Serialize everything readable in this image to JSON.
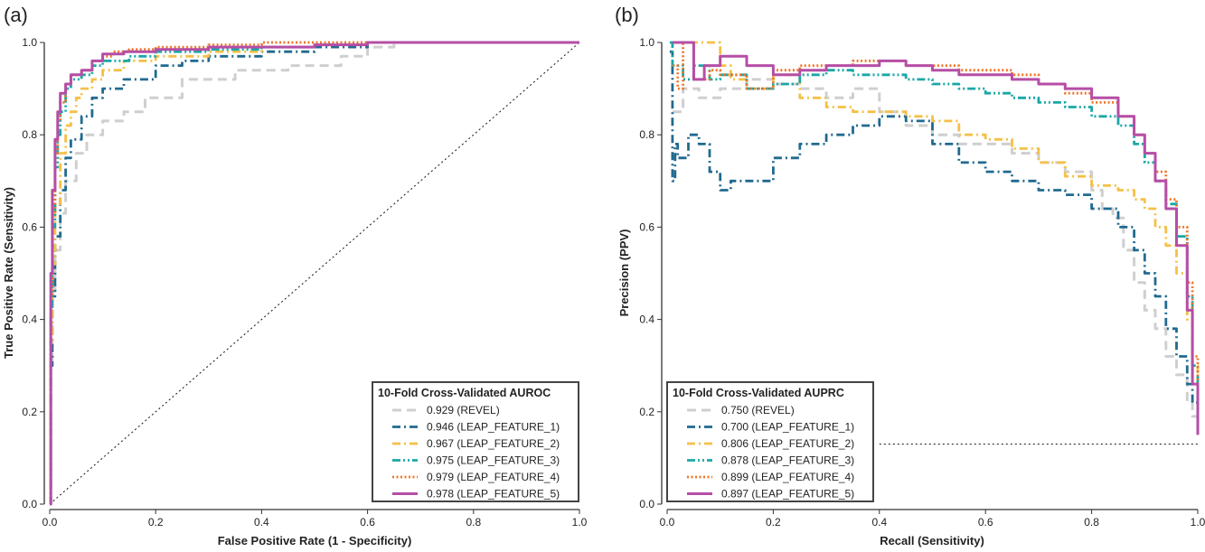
{
  "colors": {
    "REVEL": "#cfcfcf",
    "LEAP_FEATURE_1": "#216a8f",
    "LEAP_FEATURE_2": "#f5c048",
    "LEAP_FEATURE_3": "#1aa7a7",
    "LEAP_FEATURE_4": "#ee7628",
    "LEAP_FEATURE_5": "#b54ea6"
  },
  "chart_data": [
    {
      "type": "line",
      "panel_label": "(a)",
      "xlabel": "False Positive Rate (1 - Specificity)",
      "ylabel": "True Positive Rate (Sensitivity)",
      "xlim": [
        0,
        1
      ],
      "ylim": [
        0,
        1
      ],
      "xticks": [
        "0.0",
        "0.2",
        "0.4",
        "0.6",
        "0.8",
        "1.0"
      ],
      "yticks": [
        "0.0",
        "0.2",
        "0.4",
        "0.6",
        "0.8",
        "1.0"
      ],
      "grid": false,
      "legend_position": "bottom-right",
      "legend_title": "10-Fold Cross-Validated AUROC",
      "reference_line": {
        "style": "dotted",
        "x": [
          0,
          1
        ],
        "y": [
          0,
          1
        ]
      },
      "series": [
        {
          "name": "REVEL",
          "legend": "0.929 (REVEL)",
          "style": "dashed",
          "x": [
            0,
            0.002,
            0.005,
            0.01,
            0.02,
            0.03,
            0.05,
            0.07,
            0.1,
            0.14,
            0.18,
            0.25,
            0.35,
            0.45,
            0.55,
            0.6,
            0.65,
            1.0
          ],
          "y": [
            0,
            0.3,
            0.45,
            0.55,
            0.63,
            0.7,
            0.76,
            0.8,
            0.83,
            0.85,
            0.88,
            0.92,
            0.94,
            0.95,
            0.97,
            0.99,
            1.0,
            1.0
          ]
        },
        {
          "name": "LEAP_FEATURE_1",
          "legend": "0.946 (LEAP_FEATURE_1)",
          "style": "dashdot",
          "x": [
            0,
            0.002,
            0.005,
            0.01,
            0.02,
            0.03,
            0.04,
            0.06,
            0.08,
            0.1,
            0.14,
            0.2,
            0.25,
            0.3,
            0.4,
            0.5,
            0.6,
            0.65,
            1.0
          ],
          "y": [
            0,
            0.3,
            0.45,
            0.58,
            0.68,
            0.75,
            0.79,
            0.84,
            0.88,
            0.9,
            0.92,
            0.95,
            0.96,
            0.97,
            0.98,
            0.99,
            1.0,
            1.0,
            1.0
          ]
        },
        {
          "name": "LEAP_FEATURE_2",
          "legend": "0.967 (LEAP_FEATURE_2)",
          "style": "dashdot",
          "x": [
            0,
            0.002,
            0.005,
            0.01,
            0.02,
            0.03,
            0.04,
            0.05,
            0.06,
            0.08,
            0.1,
            0.14,
            0.2,
            0.3,
            0.4,
            0.5,
            0.6,
            1.0
          ],
          "y": [
            0,
            0.35,
            0.52,
            0.65,
            0.76,
            0.82,
            0.85,
            0.88,
            0.9,
            0.92,
            0.94,
            0.96,
            0.97,
            0.98,
            0.99,
            0.995,
            1.0,
            1.0
          ]
        },
        {
          "name": "LEAP_FEATURE_3",
          "legend": "0.975 (LEAP_FEATURE_3)",
          "style": "dashdotdot",
          "x": [
            0,
            0.002,
            0.005,
            0.01,
            0.015,
            0.02,
            0.03,
            0.04,
            0.06,
            0.08,
            0.1,
            0.15,
            0.2,
            0.3,
            0.4,
            0.5,
            0.6,
            1.0
          ],
          "y": [
            0,
            0.42,
            0.6,
            0.73,
            0.8,
            0.85,
            0.9,
            0.92,
            0.93,
            0.95,
            0.96,
            0.97,
            0.98,
            0.985,
            0.99,
            0.995,
            1.0,
            1.0
          ]
        },
        {
          "name": "LEAP_FEATURE_4",
          "legend": "0.979 (LEAP_FEATURE_4)",
          "style": "dotted",
          "x": [
            0,
            0.002,
            0.005,
            0.01,
            0.015,
            0.02,
            0.03,
            0.04,
            0.06,
            0.08,
            0.1,
            0.12,
            0.15,
            0.2,
            0.3,
            0.4,
            0.5,
            1.0
          ],
          "y": [
            0,
            0.45,
            0.63,
            0.76,
            0.83,
            0.87,
            0.91,
            0.93,
            0.94,
            0.96,
            0.97,
            0.98,
            0.985,
            0.99,
            0.995,
            1.0,
            1.0,
            1.0
          ]
        },
        {
          "name": "LEAP_FEATURE_5",
          "legend": "0.978 (LEAP_FEATURE_5)",
          "style": "solid",
          "x": [
            0,
            0.002,
            0.005,
            0.01,
            0.015,
            0.02,
            0.03,
            0.04,
            0.06,
            0.08,
            0.1,
            0.14,
            0.2,
            0.3,
            0.4,
            0.5,
            0.6,
            1.0
          ],
          "y": [
            0,
            0.5,
            0.68,
            0.79,
            0.85,
            0.89,
            0.91,
            0.93,
            0.94,
            0.96,
            0.975,
            0.98,
            0.985,
            0.99,
            0.99,
            0.995,
            1.0,
            1.0
          ]
        }
      ]
    },
    {
      "type": "line",
      "panel_label": "(b)",
      "xlabel": "Recall (Sensitivity)",
      "ylabel": "Precision (PPV)",
      "xlim": [
        0,
        1
      ],
      "ylim": [
        0,
        1
      ],
      "xticks": [
        "0.0",
        "0.2",
        "0.4",
        "0.6",
        "0.8",
        "1.0"
      ],
      "yticks": [
        "0.0",
        "0.2",
        "0.4",
        "0.6",
        "0.8",
        "1.0"
      ],
      "grid": false,
      "legend_position": "bottom-left",
      "legend_title": "10-Fold Cross-Validated AUPRC",
      "reference_line": {
        "style": "dotted",
        "x": [
          0.4,
          1
        ],
        "y": [
          0.13,
          0.13
        ]
      },
      "series": [
        {
          "name": "REVEL",
          "legend": "0.750 (REVEL)",
          "style": "dashed",
          "x": [
            0.01,
            0.03,
            0.06,
            0.1,
            0.15,
            0.2,
            0.25,
            0.3,
            0.35,
            0.4,
            0.45,
            0.5,
            0.55,
            0.6,
            0.65,
            0.7,
            0.75,
            0.8,
            0.82,
            0.84,
            0.86,
            0.88,
            0.9,
            0.92,
            0.94,
            0.96,
            0.98,
            0.99,
            1.0
          ],
          "y": [
            0.85,
            0.9,
            0.88,
            0.9,
            0.92,
            0.91,
            0.9,
            0.88,
            0.9,
            0.85,
            0.82,
            0.8,
            0.78,
            0.78,
            0.76,
            0.74,
            0.72,
            0.68,
            0.64,
            0.62,
            0.55,
            0.48,
            0.42,
            0.38,
            0.32,
            0.28,
            0.22,
            0.19,
            0.18
          ]
        },
        {
          "name": "LEAP_FEATURE_1",
          "legend": "0.700 (LEAP_FEATURE_1)",
          "style": "dashdot",
          "x": [
            0.005,
            0.01,
            0.015,
            0.02,
            0.04,
            0.06,
            0.08,
            0.1,
            0.12,
            0.15,
            0.2,
            0.25,
            0.3,
            0.35,
            0.4,
            0.45,
            0.5,
            0.55,
            0.6,
            0.65,
            0.7,
            0.75,
            0.8,
            0.85,
            0.88,
            0.9,
            0.92,
            0.94,
            0.96,
            0.98,
            0.99,
            1.0
          ],
          "y": [
            0.98,
            0.7,
            0.78,
            0.75,
            0.8,
            0.78,
            0.72,
            0.68,
            0.7,
            0.7,
            0.75,
            0.78,
            0.8,
            0.82,
            0.84,
            0.83,
            0.78,
            0.74,
            0.72,
            0.7,
            0.68,
            0.67,
            0.64,
            0.6,
            0.55,
            0.5,
            0.45,
            0.38,
            0.32,
            0.26,
            0.22,
            0.19
          ]
        },
        {
          "name": "LEAP_FEATURE_2",
          "legend": "0.806 (LEAP_FEATURE_2)",
          "style": "dashdot",
          "x": [
            0.01,
            0.03,
            0.06,
            0.08,
            0.1,
            0.12,
            0.15,
            0.2,
            0.25,
            0.3,
            0.35,
            0.4,
            0.45,
            0.5,
            0.55,
            0.6,
            0.65,
            0.7,
            0.75,
            0.8,
            0.85,
            0.88,
            0.9,
            0.92,
            0.94,
            0.96,
            0.98,
            0.99,
            1.0
          ],
          "y": [
            1.0,
            1.0,
            1.0,
            1.0,
            0.95,
            0.92,
            0.9,
            0.93,
            0.88,
            0.86,
            0.85,
            0.85,
            0.84,
            0.83,
            0.8,
            0.79,
            0.77,
            0.74,
            0.71,
            0.69,
            0.68,
            0.66,
            0.64,
            0.6,
            0.56,
            0.5,
            0.4,
            0.3,
            0.2
          ]
        },
        {
          "name": "LEAP_FEATURE_3",
          "legend": "0.878 (LEAP_FEATURE_3)",
          "style": "dashdotdot",
          "x": [
            0.005,
            0.01,
            0.03,
            0.05,
            0.08,
            0.1,
            0.15,
            0.2,
            0.25,
            0.3,
            0.35,
            0.4,
            0.45,
            0.5,
            0.55,
            0.6,
            0.65,
            0.7,
            0.75,
            0.8,
            0.85,
            0.88,
            0.9,
            0.92,
            0.94,
            0.96,
            0.98,
            0.99,
            1.0
          ],
          "y": [
            1.0,
            0.95,
            0.92,
            0.95,
            0.92,
            0.93,
            0.9,
            0.91,
            0.93,
            0.94,
            0.93,
            0.93,
            0.92,
            0.91,
            0.9,
            0.89,
            0.88,
            0.87,
            0.86,
            0.84,
            0.82,
            0.78,
            0.74,
            0.7,
            0.65,
            0.58,
            0.45,
            0.3,
            0.18
          ]
        },
        {
          "name": "LEAP_FEATURE_4",
          "legend": "0.899 (LEAP_FEATURE_4)",
          "style": "dotted",
          "x": [
            0.01,
            0.02,
            0.03,
            0.05,
            0.08,
            0.1,
            0.15,
            0.2,
            0.25,
            0.3,
            0.35,
            0.4,
            0.45,
            0.5,
            0.55,
            0.6,
            0.65,
            0.7,
            0.75,
            0.8,
            0.85,
            0.88,
            0.9,
            0.92,
            0.94,
            0.96,
            0.98,
            0.99,
            1.0
          ],
          "y": [
            0.95,
            0.9,
            1.0,
            0.92,
            0.94,
            0.93,
            0.9,
            0.94,
            0.95,
            0.95,
            0.96,
            0.96,
            0.95,
            0.95,
            0.94,
            0.94,
            0.93,
            0.91,
            0.89,
            0.87,
            0.84,
            0.8,
            0.76,
            0.72,
            0.66,
            0.6,
            0.48,
            0.32,
            0.18
          ]
        },
        {
          "name": "LEAP_FEATURE_5",
          "legend": "0.897 (LEAP_FEATURE_5)",
          "style": "solid",
          "x": [
            0.01,
            0.02,
            0.03,
            0.04,
            0.05,
            0.07,
            0.1,
            0.15,
            0.2,
            0.25,
            0.3,
            0.35,
            0.4,
            0.45,
            0.5,
            0.55,
            0.6,
            0.65,
            0.7,
            0.75,
            0.8,
            0.85,
            0.88,
            0.9,
            0.92,
            0.94,
            0.96,
            0.98,
            0.99,
            1.0
          ],
          "y": [
            1.0,
            1.0,
            1.0,
            1.0,
            0.92,
            0.95,
            0.97,
            0.95,
            0.93,
            0.94,
            0.95,
            0.95,
            0.96,
            0.95,
            0.94,
            0.93,
            0.93,
            0.92,
            0.91,
            0.9,
            0.88,
            0.84,
            0.8,
            0.76,
            0.7,
            0.64,
            0.56,
            0.42,
            0.26,
            0.15
          ]
        }
      ]
    }
  ]
}
